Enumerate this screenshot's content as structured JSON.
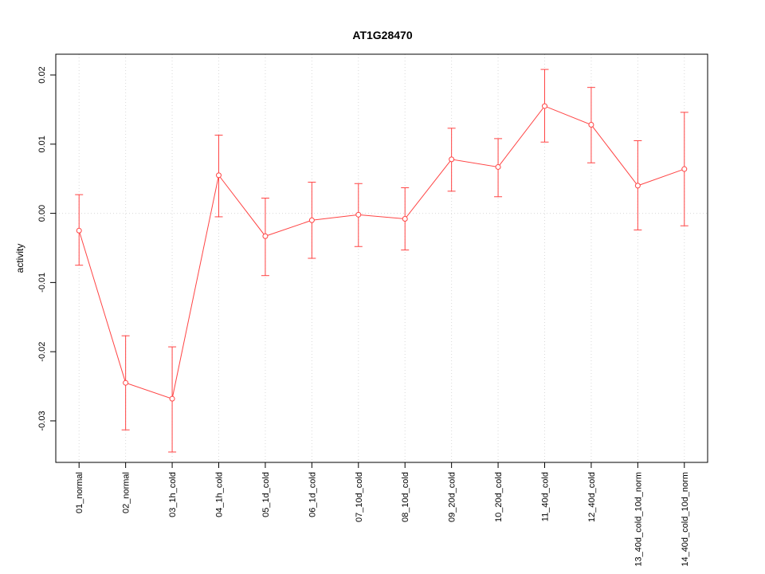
{
  "chart_data": {
    "type": "line",
    "title": "AT1G28470",
    "ylabel": "activity",
    "xlabel": "",
    "categories": [
      "01_normal",
      "02_normal",
      "03_1h_cold",
      "04_1h_cold",
      "05_1d_cold",
      "06_1d_cold",
      "07_10d_cold",
      "08_10d_cold",
      "09_20d_cold",
      "10_20d_cold",
      "11_40d_cold",
      "12_40d_cold",
      "13_40d_cold_10d_norm",
      "14_40d_cold_10d_norm"
    ],
    "series": [
      {
        "name": "activity",
        "values": [
          -0.0025,
          -0.0245,
          -0.0268,
          0.0055,
          -0.0033,
          -0.001,
          -0.0002,
          -0.0008,
          0.0078,
          0.0067,
          0.0155,
          0.0128,
          0.004,
          0.0064
        ],
        "error_upper": [
          0.0027,
          -0.0177,
          -0.0193,
          0.0113,
          0.0022,
          0.0045,
          0.0043,
          0.0037,
          0.0123,
          0.0108,
          0.0208,
          0.0182,
          0.0105,
          0.0146
        ],
        "error_lower": [
          -0.0075,
          -0.0313,
          -0.0345,
          -0.0005,
          -0.009,
          -0.0065,
          -0.0048,
          -0.0053,
          0.0032,
          0.0024,
          0.0103,
          0.0073,
          -0.0024,
          -0.0018
        ]
      }
    ],
    "ylim": [
      -0.036,
      0.023
    ],
    "yticks": [
      -0.03,
      -0.02,
      -0.01,
      0.0,
      0.01,
      0.02
    ],
    "grid": {
      "vertical_per_category": true,
      "horizontal_at_zero": true,
      "style": "dotted"
    },
    "legend": "none",
    "colors": {
      "series": "#ff4444",
      "grid": "#d9d9d9",
      "axis": "#000000",
      "text": "#000000",
      "background": "#ffffff"
    }
  }
}
